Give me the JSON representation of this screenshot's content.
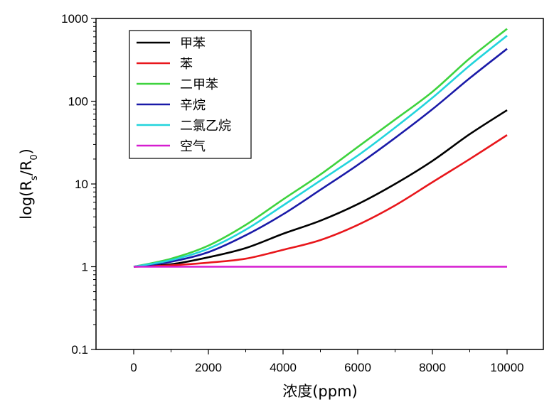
{
  "chart_data": {
    "type": "line",
    "xlabel": "浓度(ppm)",
    "ylabel_main": "log(R",
    "ylabel_sub1": "s",
    "ylabel_mid": "/R",
    "ylabel_sub2": "0",
    "ylabel_end": ")",
    "x_scale": "linear",
    "y_scale": "log",
    "xlim": [
      -1000,
      11000
    ],
    "ylim": [
      0.1,
      1000
    ],
    "x_ticks": [
      0,
      2000,
      4000,
      6000,
      8000,
      10000
    ],
    "x_tick_labels": [
      "0",
      "2000",
      "4000",
      "6000",
      "8000",
      "10000"
    ],
    "y_ticks": [
      0.1,
      1,
      10,
      100,
      1000
    ],
    "y_tick_labels": [
      "0.1",
      "1",
      "10",
      "100",
      "1000"
    ],
    "grid": false,
    "legend_position": "top-left",
    "x": [
      0,
      1000,
      2000,
      3000,
      4000,
      5000,
      6000,
      7000,
      8000,
      9000,
      10000
    ],
    "series": [
      {
        "name": "甲苯",
        "color": "#000000",
        "values": [
          1.0,
          1.07,
          1.3,
          1.68,
          2.5,
          3.6,
          5.7,
          10,
          19,
          40,
          78
        ]
      },
      {
        "name": "苯",
        "color": "#e8161b",
        "values": [
          1.0,
          1.04,
          1.12,
          1.25,
          1.6,
          2.1,
          3.2,
          5.5,
          10.5,
          20,
          39
        ]
      },
      {
        "name": "二甲苯",
        "color": "#3ed33e",
        "values": [
          1.0,
          1.25,
          1.8,
          3.2,
          6.5,
          13,
          28,
          60,
          130,
          330,
          750
        ]
      },
      {
        "name": "辛烷",
        "color": "#1a1aa8",
        "values": [
          1.0,
          1.15,
          1.5,
          2.4,
          4.3,
          8.5,
          17,
          36,
          80,
          190,
          430
        ]
      },
      {
        "name": "二氯乙烷",
        "color": "#22d4dc",
        "values": [
          1.0,
          1.2,
          1.65,
          2.8,
          5.5,
          11,
          22,
          48,
          110,
          270,
          620
        ]
      },
      {
        "name": "空气",
        "color": "#d61cd0",
        "values": [
          1,
          1,
          1,
          1,
          1,
          1,
          1,
          1,
          1,
          1,
          1
        ]
      }
    ]
  }
}
